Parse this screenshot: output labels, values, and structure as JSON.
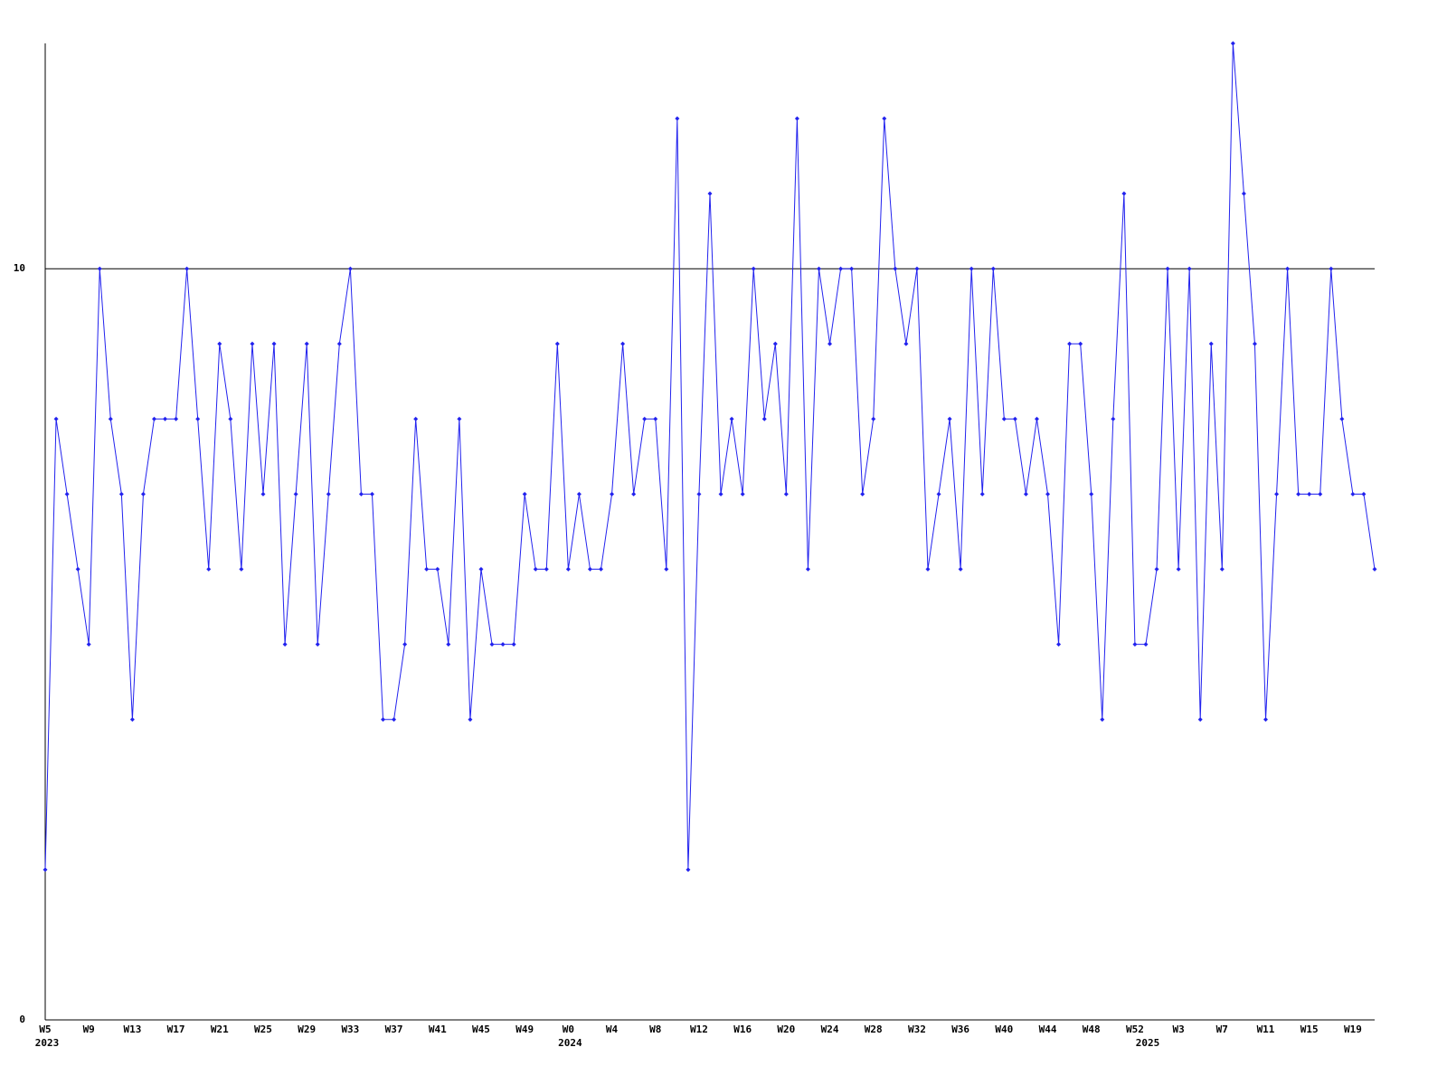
{
  "chart_data": {
    "type": "line",
    "categories": [
      "W5",
      null,
      null,
      null,
      "W9",
      null,
      null,
      null,
      "W13",
      null,
      null,
      null,
      "W17",
      null,
      null,
      null,
      "W21",
      null,
      null,
      null,
      "W25",
      null,
      null,
      null,
      "W29",
      null,
      null,
      null,
      "W33",
      null,
      null,
      null,
      "W37",
      null,
      null,
      null,
      "W41",
      null,
      null,
      null,
      "W45",
      null,
      null,
      null,
      "W49",
      null,
      null,
      null,
      "W0",
      null,
      null,
      null,
      "W4",
      null,
      null,
      null,
      "W8",
      null,
      null,
      null,
      "W12",
      null,
      null,
      null,
      "W16",
      null,
      null,
      null,
      "W20",
      null,
      null,
      null,
      "W24",
      null,
      null,
      null,
      "W28",
      null,
      null,
      null,
      "W32",
      null,
      null,
      null,
      "W36",
      null,
      null,
      null,
      "W40",
      null,
      null,
      null,
      "W44",
      null,
      null,
      null,
      "W48",
      null,
      null,
      null,
      "W52",
      null,
      null,
      null,
      "W3",
      null,
      null,
      null,
      "W7",
      null,
      null,
      null,
      "W11",
      null,
      null,
      null,
      "W15",
      null,
      null,
      null,
      "W19",
      null,
      null
    ],
    "category_years": [
      "2023",
      null,
      null,
      null,
      null,
      null,
      null,
      null,
      null,
      null,
      null,
      null,
      null,
      null,
      null,
      null,
      null,
      null,
      null,
      null,
      null,
      null,
      null,
      null,
      null,
      null,
      null,
      null,
      null,
      null,
      null,
      null,
      null,
      null,
      null,
      null,
      null,
      null,
      null,
      null,
      null,
      null,
      null,
      null,
      null,
      null,
      null,
      null,
      "2024",
      null,
      null,
      null,
      null,
      null,
      null,
      null,
      null,
      null,
      null,
      null,
      null,
      null,
      null,
      null,
      null,
      null,
      null,
      null,
      null,
      null,
      null,
      null,
      null,
      null,
      null,
      null,
      null,
      null,
      null,
      null,
      null,
      null,
      null,
      null,
      null,
      null,
      null,
      null,
      null,
      null,
      null,
      null,
      null,
      null,
      null,
      null,
      null,
      null,
      null,
      null,
      null,
      "2025",
      null,
      null,
      null,
      null,
      null,
      null,
      null,
      null,
      null,
      null,
      null,
      null,
      null,
      null,
      null,
      null,
      null,
      null,
      null,
      null,
      null
    ],
    "series": [
      {
        "color": "#2222ee",
        "values": [
          2,
          8,
          7,
          6,
          5,
          10,
          8,
          7,
          4,
          7,
          8,
          8,
          8,
          10,
          8,
          6,
          9,
          8,
          6,
          9,
          7,
          9,
          5,
          7,
          9,
          5,
          7,
          9,
          10,
          7,
          7,
          4,
          4,
          5,
          8,
          6,
          6,
          5,
          8,
          4,
          6,
          5,
          5,
          5,
          7,
          6,
          6,
          9,
          6,
          7,
          6,
          6,
          7,
          9,
          7,
          8,
          8,
          6,
          12,
          2,
          7,
          11,
          7,
          8,
          7,
          10,
          8,
          9,
          7,
          12,
          6,
          10,
          9,
          10,
          10,
          7,
          8,
          12,
          10,
          9,
          10,
          6,
          7,
          8,
          6,
          10,
          7,
          10,
          8,
          8,
          7,
          8,
          7,
          5,
          9,
          9,
          7,
          4,
          8,
          11,
          5,
          5,
          6,
          10,
          6,
          10,
          4,
          9,
          6,
          13,
          11,
          9,
          4,
          7,
          10,
          7,
          7,
          7,
          10,
          8,
          7,
          7,
          6
        ]
      }
    ],
    "ylim": [
      0,
      13
    ],
    "yticks": [
      0,
      10
    ],
    "grid": true
  }
}
